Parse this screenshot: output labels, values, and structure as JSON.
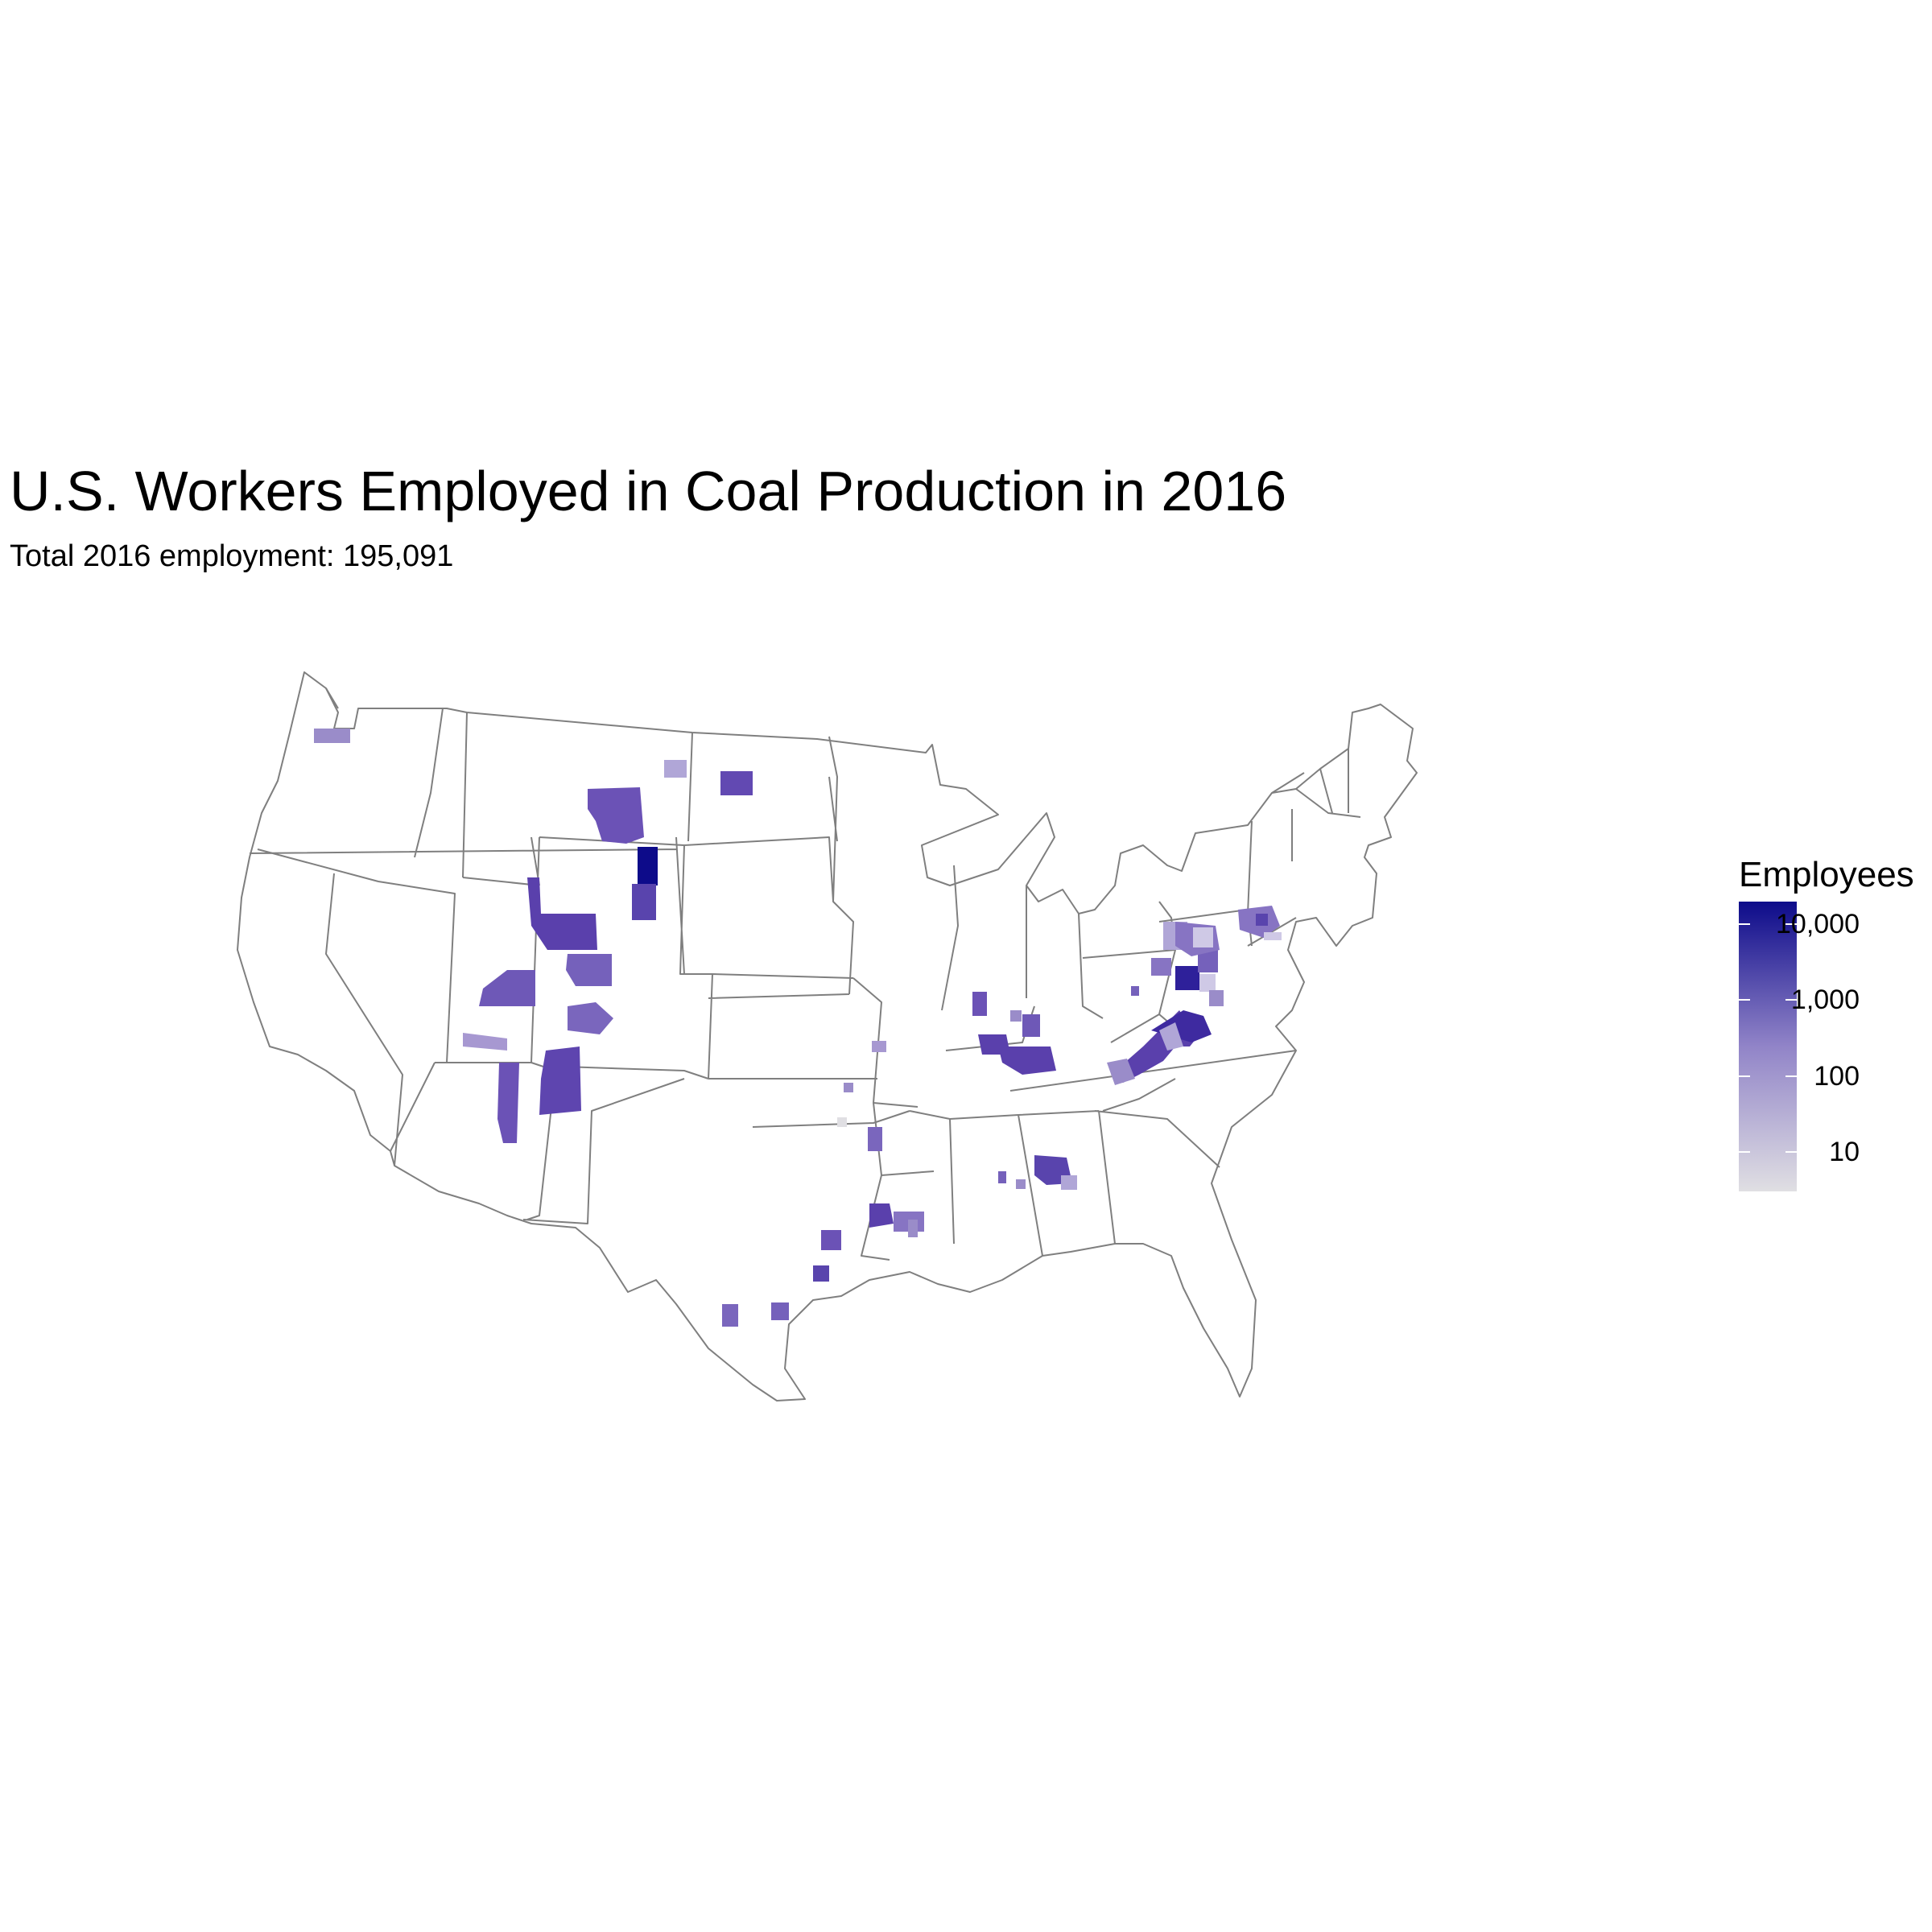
{
  "title": "U.S. Workers Employed in Coal Production in 2016",
  "subtitle": "Total 2016 employment: 195,091",
  "legend": {
    "title": "Employees",
    "scale": "log10",
    "range": [
      3,
      20000
    ],
    "low_color": "#e0dfe3",
    "high_color": "#0d0b8a",
    "ticks": [
      {
        "value": 10000,
        "label": "10,000"
      },
      {
        "value": 1000,
        "label": "1,000"
      },
      {
        "value": 100,
        "label": "100"
      },
      {
        "value": 10,
        "label": "10"
      }
    ]
  },
  "map": {
    "type": "county-choropleth",
    "region": "Contiguous United States",
    "state_border_color": "#7f7f7f",
    "background": "#ffffff"
  }
}
